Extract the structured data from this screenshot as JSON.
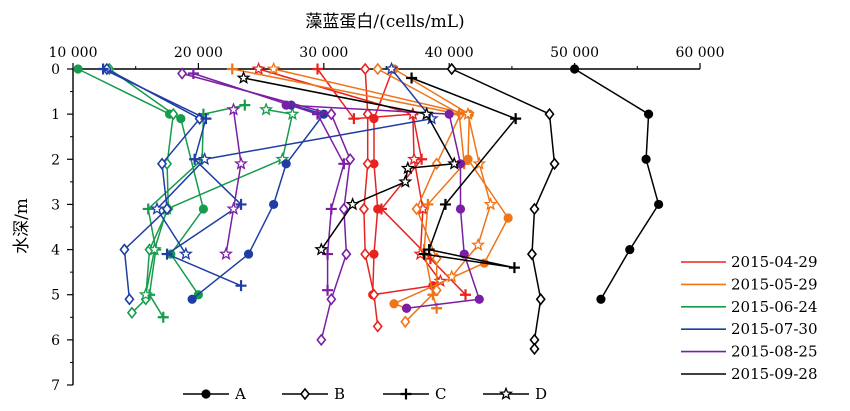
{
  "chart_data": {
    "type": "line",
    "xlabel": "藻蓝蛋白/(cells/mL)",
    "ylabel": "水深/m",
    "x_ticks": [
      "10 000",
      "20 000",
      "30 000",
      "40 000",
      "50 000",
      "60 000"
    ],
    "y_ticks": [
      "0",
      "1",
      "2",
      "3",
      "4",
      "5",
      "6",
      "7"
    ],
    "xlim": [
      10000,
      60000
    ],
    "ylim": [
      0,
      7
    ],
    "x_axis_position": "top",
    "y_inverted": true,
    "grid": false,
    "legend_dates": [
      "2015-04-29",
      "2015-05-29",
      "2015-06-24",
      "2015-07-30",
      "2015-08-25",
      "2015-09-28"
    ],
    "legend_colors": [
      "#e8231f",
      "#f07418",
      "#169c4c",
      "#1f3ea3",
      "#7a1fa3",
      "#000000"
    ],
    "legend_markers": [
      "A",
      "B",
      "C",
      "D"
    ],
    "legend_dates_position": "right",
    "legend_markers_position": "bottom",
    "series": [
      {
        "color": "#e8231f",
        "marker": "A",
        "points": [
          [
            35500,
            0
          ],
          [
            34000,
            1.1
          ],
          [
            34000,
            2.1
          ],
          [
            34300,
            3.1
          ],
          [
            34000,
            4.1
          ],
          [
            33900,
            5.0
          ],
          [
            38700,
            4.8
          ]
        ]
      },
      {
        "color": "#e8231f",
        "marker": "B",
        "points": [
          [
            33300,
            0
          ],
          [
            33500,
            1
          ],
          [
            33500,
            2.1
          ],
          [
            33200,
            3.1
          ],
          [
            33300,
            4.1
          ],
          [
            34000,
            5.0
          ],
          [
            34300,
            5.7
          ]
        ]
      },
      {
        "color": "#e8231f",
        "marker": "C",
        "points": [
          [
            29500,
            0
          ],
          [
            32400,
            1.1
          ],
          [
            37100,
            1
          ],
          [
            37800,
            2
          ],
          [
            34600,
            3.1
          ],
          [
            38500,
            4.2
          ],
          [
            41300,
            5.0
          ]
        ]
      },
      {
        "color": "#e8231f",
        "marker": "D",
        "points": [
          [
            24800,
            0
          ],
          [
            37100,
            1
          ],
          [
            37200,
            2
          ],
          [
            37900,
            3.1
          ],
          [
            37700,
            4.1
          ],
          [
            39300,
            4.7
          ]
        ]
      },
      {
        "color": "#f07418",
        "marker": "A",
        "points": [
          [
            35600,
            0
          ],
          [
            41600,
            1
          ],
          [
            41500,
            2
          ],
          [
            44700,
            3.3
          ],
          [
            42800,
            4.3
          ],
          [
            35600,
            5.2
          ],
          [
            36600,
            5.3
          ]
        ]
      },
      {
        "color": "#f07418",
        "marker": "B",
        "points": [
          [
            34300,
            0
          ],
          [
            40900,
            1
          ],
          [
            39000,
            2.1
          ],
          [
            37400,
            3.1
          ],
          [
            39000,
            4.2
          ],
          [
            39000,
            4.9
          ],
          [
            36500,
            5.6
          ]
        ]
      },
      {
        "color": "#f07418",
        "marker": "C",
        "points": [
          [
            22700,
            0
          ],
          [
            40800,
            1
          ],
          [
            41200,
            2.1
          ],
          [
            38300,
            3.0
          ],
          [
            38000,
            4.0
          ],
          [
            38700,
            5.0
          ],
          [
            39000,
            5.3
          ]
        ]
      },
      {
        "color": "#f07418",
        "marker": "D",
        "points": [
          [
            26000,
            0
          ],
          [
            41500,
            1
          ],
          [
            42400,
            2.1
          ],
          [
            43300,
            3.0
          ],
          [
            42300,
            3.9
          ],
          [
            40200,
            4.6
          ]
        ]
      },
      {
        "color": "#169c4c",
        "marker": "A",
        "points": [
          [
            10400,
            0
          ],
          [
            17700,
            1
          ],
          [
            18600,
            1.1
          ],
          [
            20400,
            3.1
          ],
          [
            17800,
            4.1
          ],
          [
            20000,
            5.0
          ]
        ]
      },
      {
        "color": "#169c4c",
        "marker": "B",
        "points": [
          [
            12900,
            0
          ],
          [
            18000,
            1
          ],
          [
            17500,
            2.1
          ],
          [
            17600,
            3.1
          ],
          [
            16100,
            4.0
          ],
          [
            15800,
            5.1
          ],
          [
            14700,
            5.4
          ]
        ]
      },
      {
        "color": "#169c4c",
        "marker": "C",
        "points": [
          [
            23700,
            0.8
          ],
          [
            20400,
            1
          ],
          [
            20300,
            2
          ],
          [
            16000,
            3.1
          ],
          [
            16600,
            4.0
          ],
          [
            16100,
            5.0
          ],
          [
            17200,
            5.5
          ]
        ]
      },
      {
        "color": "#169c4c",
        "marker": "D",
        "points": [
          [
            25400,
            0.9
          ],
          [
            27500,
            1
          ],
          [
            26700,
            2
          ],
          [
            17500,
            3.1
          ],
          [
            16500,
            4.0
          ],
          [
            15800,
            5.0
          ]
        ]
      },
      {
        "color": "#1f3ea3",
        "marker": "A",
        "points": [
          [
            27400,
            0.8
          ],
          [
            30000,
            1
          ],
          [
            27000,
            2.1
          ],
          [
            26000,
            3.0
          ],
          [
            24000,
            4.1
          ],
          [
            19500,
            5.1
          ]
        ]
      },
      {
        "color": "#1f3ea3",
        "marker": "B",
        "points": [
          [
            12700,
            0
          ],
          [
            20100,
            1.1
          ],
          [
            17100,
            2.1
          ],
          [
            17500,
            3.1
          ],
          [
            14100,
            4.0
          ],
          [
            14500,
            5.1
          ]
        ]
      },
      {
        "color": "#1f3ea3",
        "marker": "C",
        "points": [
          [
            12400,
            0
          ],
          [
            20600,
            1.1
          ],
          [
            19700,
            2.0
          ],
          [
            23400,
            3
          ],
          [
            17500,
            4.1
          ],
          [
            23400,
            4.8
          ]
        ]
      },
      {
        "color": "#1f3ea3",
        "marker": "D",
        "points": [
          [
            35400,
            0
          ],
          [
            38600,
            1.1
          ],
          [
            20500,
            2.0
          ],
          [
            16700,
            3.1
          ],
          [
            19000,
            4.1
          ]
        ]
      },
      {
        "color": "#7a1fa3",
        "marker": "A",
        "points": [
          [
            27000,
            0.8
          ],
          [
            40000,
            1.0
          ],
          [
            40900,
            2.1
          ],
          [
            40900,
            3.1
          ],
          [
            41200,
            4.1
          ],
          [
            42400,
            5.1
          ],
          [
            36600,
            5.3
          ]
        ]
      },
      {
        "color": "#7a1fa3",
        "marker": "B",
        "points": [
          [
            18700,
            0.1
          ],
          [
            30600,
            1
          ],
          [
            32100,
            2
          ],
          [
            31600,
            3.1
          ],
          [
            31800,
            4.1
          ],
          [
            30600,
            5.1
          ],
          [
            29800,
            6.0
          ]
        ]
      },
      {
        "color": "#7a1fa3",
        "marker": "C",
        "points": [
          [
            19600,
            0.1
          ],
          [
            29500,
            1
          ],
          [
            31600,
            2.1
          ],
          [
            30600,
            3.1
          ],
          [
            30300,
            4.1
          ],
          [
            30300,
            4.9
          ]
        ]
      },
      {
        "color": "#7a1fa3",
        "marker": "D",
        "points": [
          [
            22800,
            0.9
          ],
          [
            23400,
            2.1
          ],
          [
            22800,
            3.1
          ],
          [
            22200,
            4.1
          ]
        ]
      },
      {
        "color": "#000000",
        "marker": "A",
        "points": [
          [
            50000,
            0
          ],
          [
            55900,
            1
          ],
          [
            55700,
            2
          ],
          [
            56700,
            3.0
          ],
          [
            54400,
            4.0
          ],
          [
            52100,
            5.1
          ]
        ]
      },
      {
        "color": "#000000",
        "marker": "B",
        "points": [
          [
            40200,
            0
          ],
          [
            48000,
            1
          ],
          [
            48400,
            2.1
          ],
          [
            46800,
            3.1
          ],
          [
            46600,
            4.1
          ],
          [
            47300,
            5.1
          ],
          [
            46800,
            6.0
          ],
          [
            46800,
            6.2
          ]
        ]
      },
      {
        "color": "#000000",
        "marker": "C",
        "points": [
          [
            37000,
            0.2
          ],
          [
            45300,
            1.1
          ],
          [
            39700,
            3.0
          ],
          [
            38400,
            4.0
          ],
          [
            45200,
            4.4
          ],
          [
            38000,
            4.1
          ]
        ]
      },
      {
        "color": "#000000",
        "marker": "D",
        "points": [
          [
            23600,
            0.2
          ],
          [
            38200,
            1
          ],
          [
            40400,
            2.1
          ],
          [
            36700,
            2.2
          ],
          [
            36500,
            2.5
          ],
          [
            32300,
            3.0
          ],
          [
            29800,
            4.0
          ]
        ]
      }
    ]
  }
}
